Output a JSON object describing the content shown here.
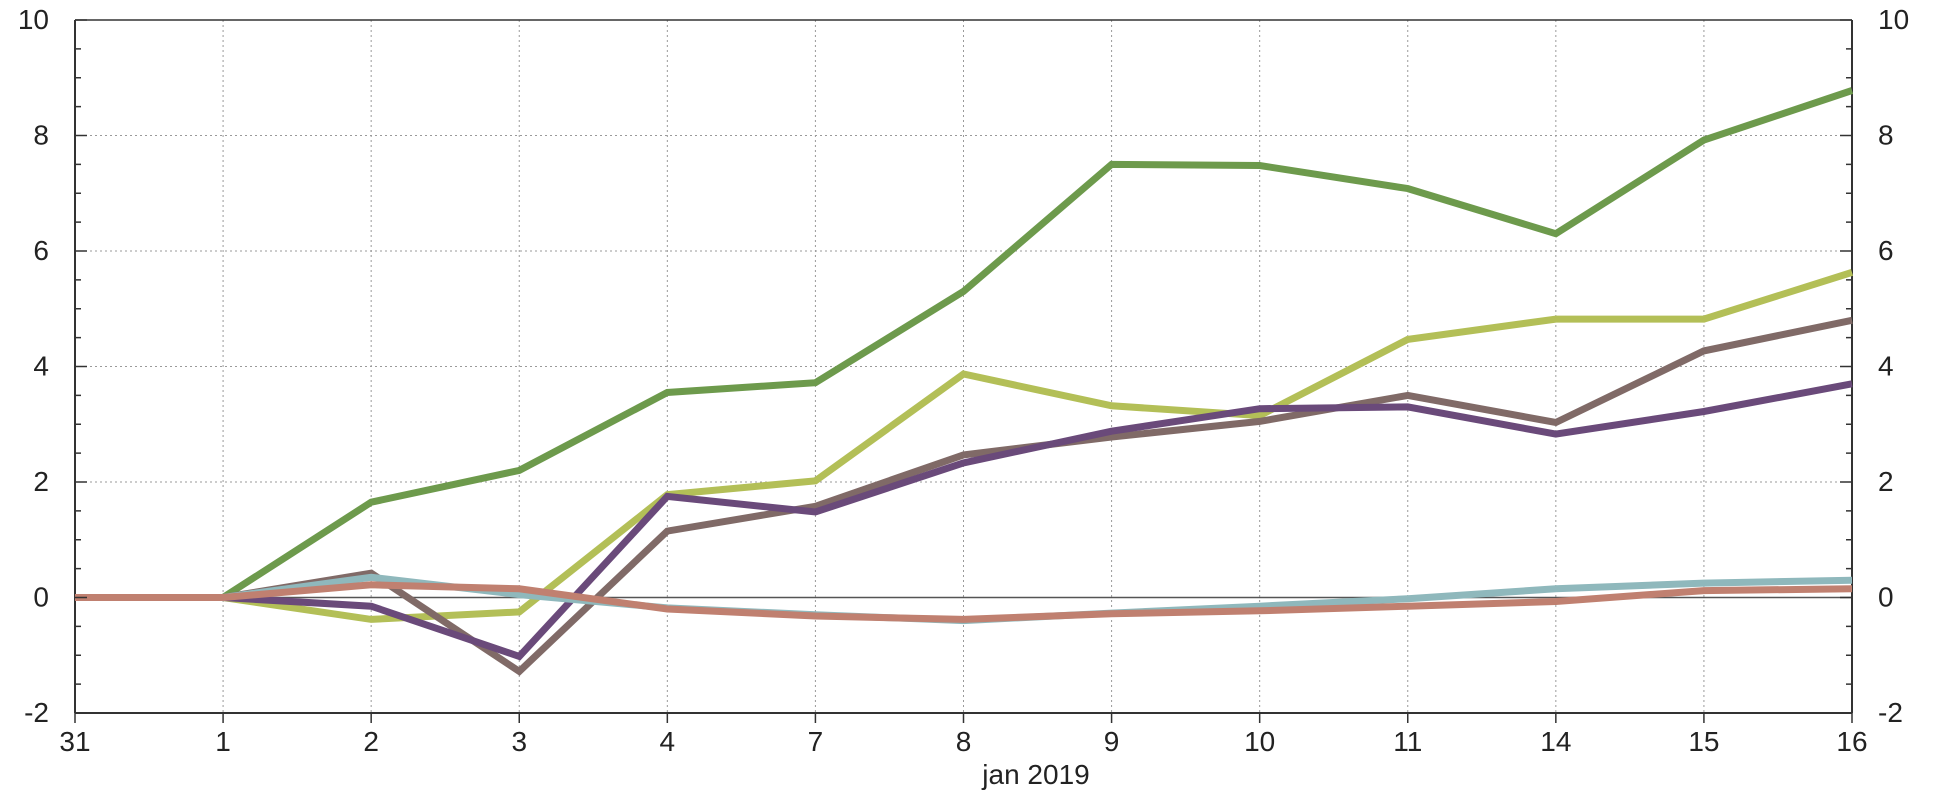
{
  "chart_data": {
    "type": "line",
    "xlabel": "jan 2019",
    "ylabel": "",
    "categories": [
      "31",
      "1",
      "2",
      "3",
      "4",
      "7",
      "8",
      "9",
      "10",
      "11",
      "14",
      "15",
      "16"
    ],
    "ylim": [
      -2,
      10
    ],
    "yticks": [
      -2,
      0,
      2,
      4,
      6,
      8,
      10
    ],
    "grid": true,
    "right_axis": true,
    "series": [
      {
        "color": "#6d9a4c",
        "values": [
          0,
          0,
          1.65,
          2.2,
          3.55,
          3.72,
          5.3,
          7.5,
          7.48,
          7.08,
          6.3,
          7.92,
          8.78
        ]
      },
      {
        "color": "#b3bf57",
        "values": [
          0,
          0,
          -0.38,
          -0.25,
          1.78,
          2.02,
          3.87,
          3.32,
          3.15,
          4.47,
          4.82,
          4.82,
          5.63
        ]
      },
      {
        "color": "#806a67",
        "values": [
          0,
          0,
          0.42,
          -1.28,
          1.15,
          1.58,
          2.47,
          2.78,
          3.05,
          3.5,
          3.03,
          4.27,
          4.8
        ]
      },
      {
        "color": "#6a4a7a",
        "values": [
          0,
          0,
          -0.15,
          -1.02,
          1.75,
          1.48,
          2.33,
          2.88,
          3.27,
          3.3,
          2.83,
          3.22,
          3.7
        ]
      },
      {
        "color": "#8fb8bc",
        "values": [
          0,
          0,
          0.35,
          0.05,
          -0.18,
          -0.3,
          -0.4,
          -0.27,
          -0.15,
          -0.02,
          0.15,
          0.25,
          0.3
        ]
      },
      {
        "color": "#c08070",
        "values": [
          0,
          0,
          0.22,
          0.15,
          -0.2,
          -0.32,
          -0.38,
          -0.28,
          -0.23,
          -0.15,
          -0.07,
          0.12,
          0.15
        ]
      }
    ]
  }
}
